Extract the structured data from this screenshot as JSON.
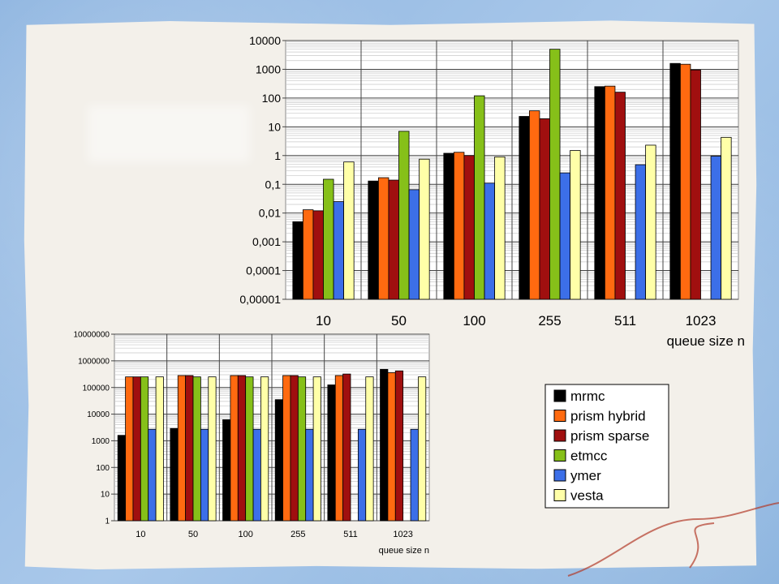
{
  "colors": {
    "mrmc": "#000000",
    "prism hybrid": "#ff6a10",
    "prism sparse": "#a00f0f",
    "etmcc": "#86c019",
    "ymer": "#3c6fe8",
    "vesta": "#ffffa8"
  },
  "chart_data": [
    {
      "type": "bar",
      "scale": "log",
      "categories": [
        "10",
        "50",
        "100",
        "255",
        "511",
        "1023"
      ],
      "xlabel": "queue size n",
      "ylabel": "",
      "ylim": [
        1e-05,
        10000
      ],
      "ytick_labels": [
        "0,00001",
        "0,0001",
        "0,001",
        "0,01",
        "0,1",
        "1",
        "10",
        "100",
        "1000",
        "10000"
      ],
      "grid": true,
      "series": [
        {
          "name": "mrmc",
          "values": [
            0.005,
            0.13,
            1.2,
            23,
            250,
            1600
          ]
        },
        {
          "name": "prism hybrid",
          "values": [
            0.013,
            0.17,
            1.3,
            36,
            260,
            1500
          ]
        },
        {
          "name": "prism sparse",
          "values": [
            0.012,
            0.14,
            1.0,
            19,
            160,
            950
          ]
        },
        {
          "name": "etmcc",
          "values": [
            0.15,
            7,
            120,
            5000,
            null,
            null
          ]
        },
        {
          "name": "ymer",
          "values": [
            0.025,
            0.065,
            0.11,
            0.25,
            0.48,
            0.95
          ]
        },
        {
          "name": "vesta",
          "values": [
            0.6,
            0.75,
            0.9,
            1.5,
            2.3,
            4.3
          ]
        }
      ]
    },
    {
      "type": "bar",
      "scale": "log",
      "categories": [
        "10",
        "50",
        "100",
        "255",
        "511",
        "1023"
      ],
      "xlabel": "queue size n",
      "ylabel": "",
      "ylim": [
        1,
        10000000
      ],
      "ytick_labels": [
        "1",
        "10",
        "100",
        "1000",
        "10000",
        "100000",
        "1000000",
        "10000000"
      ],
      "grid": true,
      "series": [
        {
          "name": "mrmc",
          "values": [
            1600,
            2900,
            6200,
            35000,
            125000,
            480000
          ]
        },
        {
          "name": "prism hybrid",
          "values": [
            250000,
            280000,
            280000,
            280000,
            280000,
            360000
          ]
        },
        {
          "name": "prism sparse",
          "values": [
            250000,
            280000,
            280000,
            280000,
            320000,
            420000
          ]
        },
        {
          "name": "etmcc",
          "values": [
            250000,
            250000,
            250000,
            250000,
            null,
            null
          ]
        },
        {
          "name": "ymer",
          "values": [
            2700,
            2700,
            2700,
            2700,
            2700,
            2700
          ]
        },
        {
          "name": "vesta",
          "values": [
            250000,
            250000,
            250000,
            250000,
            250000,
            250000
          ]
        }
      ]
    }
  ],
  "legend": {
    "items": [
      "mrmc",
      "prism hybrid",
      "prism sparse",
      "etmcc",
      "ymer",
      "vesta"
    ]
  }
}
